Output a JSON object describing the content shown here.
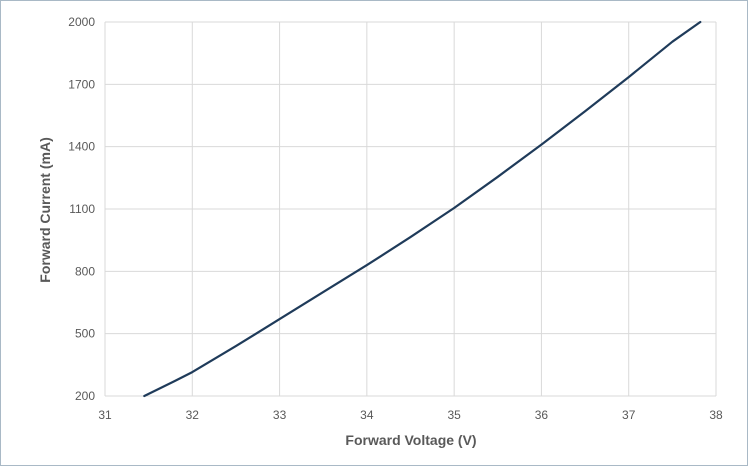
{
  "chart_data": {
    "type": "line",
    "title": "",
    "xlabel": "Forward Voltage (V)",
    "ylabel": "Forward Current (mA)",
    "xlim": [
      31,
      38
    ],
    "ylim": [
      200,
      2000
    ],
    "x_ticks": [
      "31",
      "32",
      "33",
      "34",
      "35",
      "36",
      "37",
      "38"
    ],
    "y_ticks": [
      "200",
      "500",
      "800",
      "1100",
      "1400",
      "1700",
      "2000"
    ],
    "grid": true,
    "legend": "none",
    "series": [
      {
        "color": "#1f3b5a",
        "x": [
          31.45,
          31.8,
          32.0,
          32.5,
          33.0,
          33.5,
          34.0,
          34.5,
          35.0,
          35.5,
          36.0,
          36.5,
          37.0,
          37.5,
          37.82
        ],
        "y": [
          200,
          272,
          315,
          440,
          570,
          700,
          830,
          965,
          1105,
          1255,
          1410,
          1570,
          1735,
          1905,
          2000
        ]
      }
    ]
  }
}
